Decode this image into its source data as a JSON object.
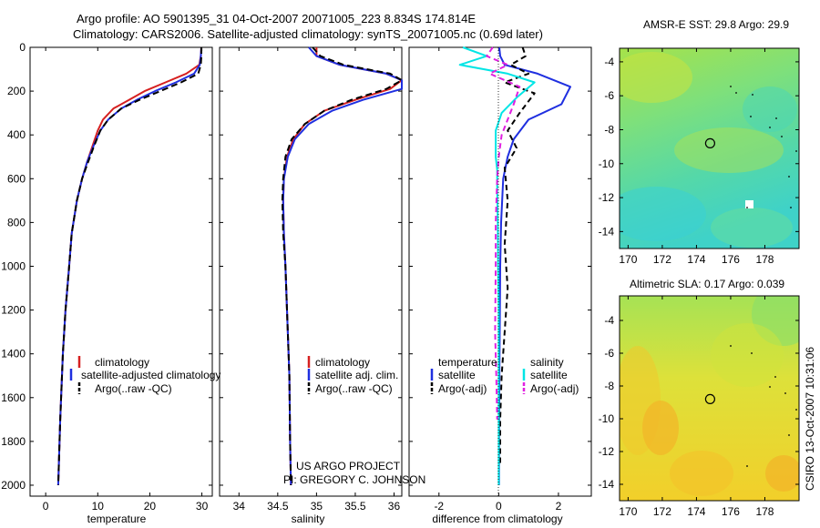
{
  "header": {
    "line1": "Argo profile: AO 5901395_31 04-Oct-2007 20071005_223 8.834S 174.814E",
    "line2": "Climatology: CARS2006. Satellite-adjusted climatology: synTS_20071005.nc (0.69d later)"
  },
  "colors": {
    "climatology": "#d62020",
    "satellite": "#1f2fe0",
    "argo": "#000000",
    "satellite_salinity": "#00e5e5",
    "argo_salinity": "#e020e0"
  },
  "chart_data": [
    {
      "id": "temperature",
      "type": "line",
      "xlabel": "temperature",
      "ylabel": "",
      "xlim": [
        -3,
        32
      ],
      "ylim": [
        2050,
        0
      ],
      "xticks": [
        0,
        10,
        20,
        30
      ],
      "yticks": [
        0,
        200,
        400,
        600,
        800,
        1000,
        1200,
        1400,
        1600,
        1800,
        2000
      ],
      "legend": [
        "climatology",
        "satellite-adjusted climatology",
        "Argo(..raw -QC)"
      ],
      "series": [
        {
          "name": "climatology",
          "color": "#d62020",
          "dash": "",
          "x": [
            29.9,
            29.8,
            29.5,
            27,
            23,
            19,
            16,
            13,
            11,
            10,
            9,
            8,
            7,
            6,
            5,
            4.5,
            3.8,
            3.3,
            2.8,
            2.4
          ],
          "y": [
            0,
            40,
            80,
            120,
            160,
            200,
            240,
            280,
            330,
            380,
            450,
            520,
            600,
            700,
            850,
            1000,
            1200,
            1400,
            1700,
            2000
          ]
        },
        {
          "name": "satellite",
          "color": "#1f2fe0",
          "dash": "",
          "x": [
            29.9,
            29.8,
            29.6,
            28.5,
            25,
            21,
            17.5,
            14.5,
            12,
            10.5,
            9.2,
            8,
            7,
            6,
            5,
            4.5,
            3.8,
            3.3,
            2.8,
            2.4
          ],
          "y": [
            0,
            40,
            80,
            120,
            160,
            200,
            240,
            280,
            330,
            380,
            450,
            520,
            600,
            700,
            850,
            1000,
            1200,
            1400,
            1700,
            2000
          ]
        },
        {
          "name": "argo",
          "color": "#000000",
          "dash": "7,4",
          "x": [
            29.9,
            29.9,
            29.8,
            29.3,
            26,
            22,
            18,
            14.5,
            12,
            10.5,
            9.3,
            8.2,
            7,
            6,
            5,
            4.5,
            3.8,
            3.3,
            2.8,
            2.4
          ],
          "y": [
            0,
            40,
            80,
            120,
            160,
            200,
            240,
            280,
            330,
            380,
            450,
            520,
            600,
            700,
            850,
            1000,
            1200,
            1400,
            1700,
            2000
          ]
        }
      ]
    },
    {
      "id": "salinity",
      "type": "line",
      "xlabel": "salinity",
      "ylabel": "",
      "xlim": [
        33.75,
        36.1
      ],
      "ylim": [
        2050,
        0
      ],
      "xticks": [
        34,
        34.5,
        35,
        35.5,
        36
      ],
      "legend": [
        "climatology",
        "satellite adj. clim.",
        "Argo(..raw -QC)"
      ],
      "series": [
        {
          "name": "climatology",
          "color": "#d62020",
          "dash": "",
          "x": [
            35.0,
            35.0,
            35.3,
            35.9,
            36.1,
            35.95,
            35.5,
            35.1,
            34.85,
            34.7,
            34.62,
            34.58,
            34.57,
            34.58,
            34.6,
            34.62,
            34.65,
            34.66,
            34.67
          ],
          "y": [
            0,
            40,
            80,
            120,
            150,
            190,
            240,
            290,
            350,
            420,
            500,
            600,
            700,
            850,
            1000,
            1200,
            1500,
            1800,
            2000
          ]
        },
        {
          "name": "satellite",
          "color": "#1f2fe0",
          "dash": "",
          "x": [
            34.9,
            35.0,
            35.3,
            35.9,
            36.1,
            36.1,
            35.6,
            35.2,
            34.9,
            34.72,
            34.63,
            34.58,
            34.57,
            34.58,
            34.6,
            34.62,
            34.65,
            34.66,
            34.67
          ],
          "y": [
            0,
            40,
            80,
            120,
            150,
            190,
            240,
            290,
            350,
            420,
            500,
            600,
            700,
            850,
            1000,
            1200,
            1500,
            1800,
            2000
          ]
        },
        {
          "name": "argo",
          "color": "#000000",
          "dash": "7,4",
          "x": [
            34.95,
            35.05,
            35.35,
            35.95,
            36.1,
            35.9,
            35.45,
            35.1,
            34.85,
            34.68,
            34.6,
            34.57,
            34.56,
            34.57,
            34.6,
            34.62,
            34.65,
            34.66,
            34.67
          ],
          "y": [
            0,
            40,
            80,
            120,
            150,
            190,
            240,
            290,
            350,
            420,
            500,
            600,
            700,
            850,
            1000,
            1200,
            1500,
            1800,
            2000
          ]
        }
      ]
    },
    {
      "id": "difference",
      "type": "line",
      "xlabel": "difference from climatology",
      "ylabel": "",
      "xlim": [
        -3,
        3.1
      ],
      "ylim": [
        2050,
        0
      ],
      "xticks": [
        -2,
        0,
        2
      ],
      "legend_headers": [
        "temperature",
        "salinity"
      ],
      "legend": [
        "satellite",
        "Argo(-adj)",
        "satellite",
        "Argo(-adj)"
      ],
      "series": [
        {
          "name": "temperature satellite",
          "color": "#1f2fe0",
          "dash": "",
          "x": [
            0.02,
            0.05,
            0.2,
            1.3,
            2.4,
            2.1,
            1.0,
            0.5,
            0.3,
            0.15,
            0.08,
            0.05,
            0.04,
            0.03,
            0.02,
            0.01,
            0.01
          ],
          "y": [
            0,
            40,
            80,
            120,
            180,
            260,
            330,
            420,
            500,
            600,
            800,
            1000,
            1200,
            1400,
            1600,
            1800,
            2000
          ]
        },
        {
          "name": "temperature argo",
          "color": "#000000",
          "dash": "6,4",
          "x": [
            0.8,
            0.9,
            0.4,
            1.0,
            0.2,
            1.2,
            0.7,
            0.3,
            0.6,
            0.2,
            0.3,
            0.2,
            0.3,
            0.2,
            0.1,
            0.05,
            0.05
          ],
          "y": [
            0,
            40,
            80,
            120,
            160,
            210,
            300,
            380,
            460,
            550,
            700,
            900,
            1100,
            1300,
            1500,
            1700,
            1900
          ]
        },
        {
          "name": "salinity satellite",
          "color": "#00e5e5",
          "dash": "",
          "x": [
            -1.2,
            -0.4,
            -1.3,
            0.3,
            1.2,
            0.6,
            0.1,
            -0.1,
            -0.1,
            -0.05,
            -0.05,
            -0.03,
            -0.02,
            0.0,
            0.0,
            0.0,
            0.0
          ],
          "y": [
            0,
            40,
            80,
            120,
            160,
            230,
            300,
            380,
            500,
            560,
            650,
            800,
            1000,
            1200,
            1500,
            1800,
            2000
          ]
        },
        {
          "name": "salinity argo",
          "color": "#e020e0",
          "dash": "6,4",
          "x": [
            -0.2,
            -0.4,
            0.3,
            -0.3,
            0.7,
            0.5,
            0.3,
            0.1,
            0.0,
            -0.05,
            -0.1,
            -0.1,
            -0.12,
            -0.08,
            -0.05
          ],
          "y": [
            0,
            40,
            80,
            120,
            180,
            260,
            330,
            400,
            500,
            600,
            800,
            1000,
            1300,
            1500,
            1700
          ]
        }
      ]
    },
    {
      "id": "sst_map",
      "type": "heatmap",
      "title": "AMSR-E SST: 29.8 Argo: 29.9",
      "xlim": [
        169.5,
        180
      ],
      "ylim": [
        -15,
        -3.2
      ],
      "xticks": [
        170,
        172,
        174,
        176,
        178
      ],
      "yticks": [
        -4,
        -6,
        -8,
        -10,
        -12,
        -14
      ],
      "profile_marker": {
        "lon": 174.8,
        "lat": -8.8
      }
    },
    {
      "id": "sla_map",
      "type": "heatmap",
      "title": "Altimetric SLA: 0.17 Argo: 0.039",
      "xlim": [
        169.5,
        180
      ],
      "ylim": [
        -15,
        -2.5
      ],
      "xticks": [
        170,
        172,
        174,
        176,
        178
      ],
      "yticks": [
        -4,
        -6,
        -8,
        -10,
        -12,
        -14
      ],
      "profile_marker": {
        "lon": 174.8,
        "lat": -8.8
      }
    }
  ],
  "credits": {
    "project": "US ARGO PROJECT",
    "pi": "PI: GREGORY C. JOHNSON",
    "stamp": "CSIRO 13-Oct-2007 10:31:06"
  }
}
